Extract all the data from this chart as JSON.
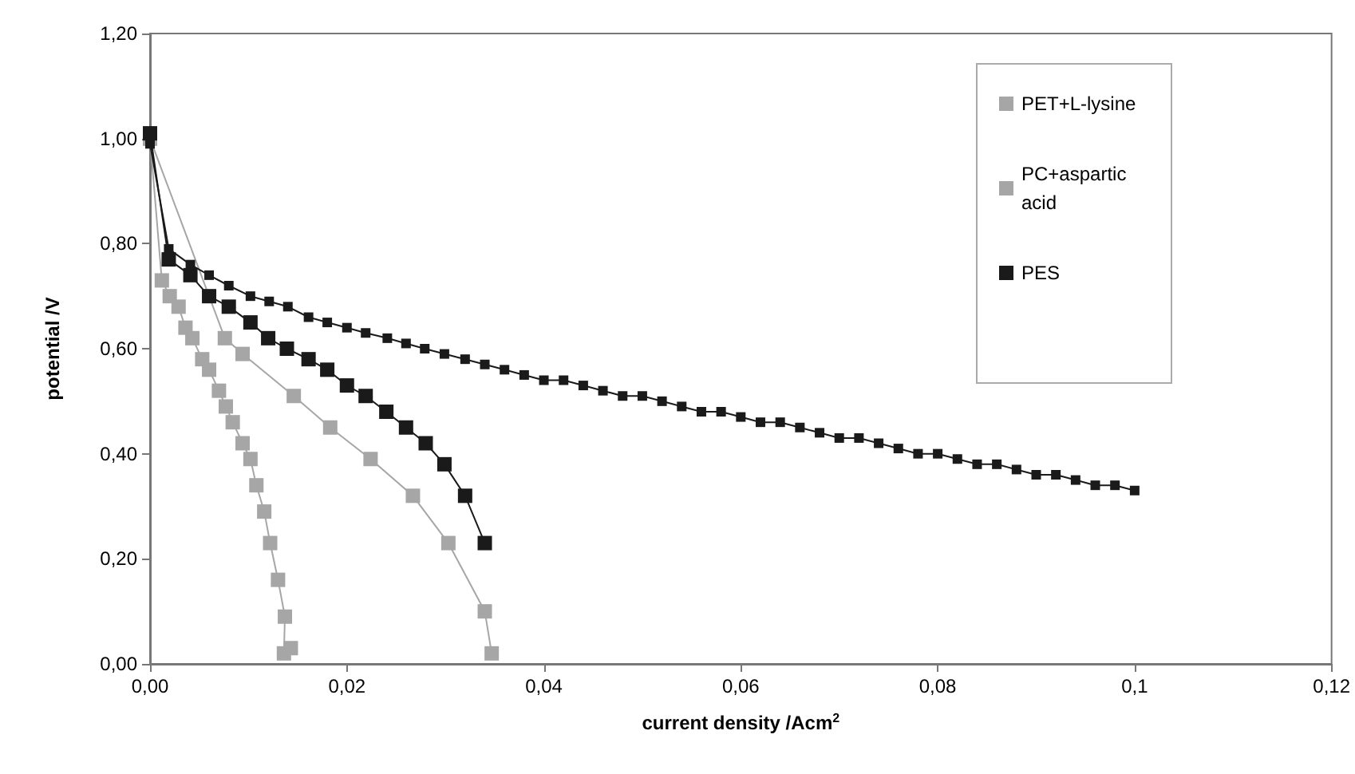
{
  "chart_data": {
    "type": "line",
    "xlabel": "current density /Acm$^{2}$",
    "ylabel": "potential /V",
    "marker": "square",
    "legend": "top right",
    "grid": false,
    "xlim": [
      0,
      0.12
    ],
    "xticks": [
      {
        "value": 0,
        "label": "0,00"
      },
      {
        "value": 0.02,
        "label": "0,02"
      },
      {
        "value": 0.04,
        "label": "0,04"
      },
      {
        "value": 0.06,
        "label": "0,06"
      },
      {
        "value": 0.08,
        "label": "0,08"
      },
      {
        "value": 0.1,
        "label": "0,1"
      },
      {
        "value": 0.12,
        "label": "0,12"
      }
    ],
    "ylim": [
      0,
      1.2
    ],
    "yticks": [
      {
        "value": 0,
        "label": "0,00"
      },
      {
        "value": 0.2,
        "label": "0,20"
      },
      {
        "value": 0.4,
        "label": "0,40"
      },
      {
        "value": 0.6,
        "label": "0,60"
      },
      {
        "value": 0.8,
        "label": "0,80"
      },
      {
        "value": 1,
        "label": "1,00"
      },
      {
        "value": 1.2,
        "label": "1,20"
      }
    ],
    "series": [
      {
        "name": "PET+L-lysine",
        "color": "#a6a6a6",
        "x": [
          0,
          0.0076,
          0.0094,
          0.0146,
          0.0183,
          0.0224,
          0.0267,
          0.0303,
          0.034,
          0.0347
        ],
        "values": [
          1.0,
          0.62,
          0.59,
          0.51,
          0.45,
          0.39,
          0.32,
          0.23,
          0.1,
          0.02
        ]
      },
      {
        "name": "PC+aspartic acid",
        "color": "#a6a6a6",
        "x": [
          0,
          0.0012,
          0.002,
          0.0029,
          0.0036,
          0.0043,
          0.0053,
          0.006,
          0.007,
          0.0077,
          0.0084,
          0.0094,
          0.0102,
          0.0108,
          0.0116,
          0.0122,
          0.013,
          0.0137,
          0.0136,
          0.0143
        ],
        "values": [
          1.0,
          0.73,
          0.7,
          0.68,
          0.64,
          0.62,
          0.58,
          0.56,
          0.52,
          0.49,
          0.46,
          0.42,
          0.39,
          0.34,
          0.29,
          0.23,
          0.16,
          0.09,
          0.02,
          0.03
        ]
      },
      {
        "name": "PES",
        "color": "#1a1a1a",
        "x": [
          0,
          0.0019,
          0.0041,
          0.006,
          0.008,
          0.0102,
          0.012,
          0.0139,
          0.0161,
          0.018,
          0.02,
          0.0219,
          0.024,
          0.026,
          0.028,
          0.0299,
          0.032,
          0.034
        ],
        "values": [
          1.01,
          0.77,
          0.74,
          0.7,
          0.68,
          0.65,
          0.62,
          0.6,
          0.58,
          0.56,
          0.53,
          0.51,
          0.48,
          0.45,
          0.42,
          0.38,
          0.32,
          0.23
        ]
      },
      {
        "color": "#1a1a1a",
        "x": [
          0,
          0.0019,
          0.0041,
          0.006,
          0.008,
          0.0102,
          0.0121,
          0.014,
          0.0161,
          0.018,
          0.02,
          0.0219,
          0.0241,
          0.026,
          0.0279,
          0.0299,
          0.032,
          0.034,
          0.036,
          0.038,
          0.04,
          0.042,
          0.044,
          0.046,
          0.048,
          0.05,
          0.052,
          0.054,
          0.056,
          0.058,
          0.06,
          0.062,
          0.064,
          0.066,
          0.068,
          0.07,
          0.072,
          0.074,
          0.076,
          0.078,
          0.08,
          0.082,
          0.084,
          0.086,
          0.088,
          0.09,
          0.092,
          0.094,
          0.096,
          0.098,
          0.1
        ],
        "values": [
          0.99,
          0.79,
          0.76,
          0.74,
          0.72,
          0.7,
          0.69,
          0.68,
          0.66,
          0.65,
          0.64,
          0.63,
          0.62,
          0.61,
          0.6,
          0.59,
          0.58,
          0.57,
          0.56,
          0.55,
          0.54,
          0.54,
          0.53,
          0.52,
          0.51,
          0.51,
          0.5,
          0.49,
          0.48,
          0.48,
          0.47,
          0.46,
          0.46,
          0.45,
          0.44,
          0.43,
          0.43,
          0.42,
          0.41,
          0.4,
          0.4,
          0.39,
          0.38,
          0.38,
          0.37,
          0.36,
          0.36,
          0.35,
          0.34,
          0.34,
          0.33
        ]
      }
    ]
  }
}
